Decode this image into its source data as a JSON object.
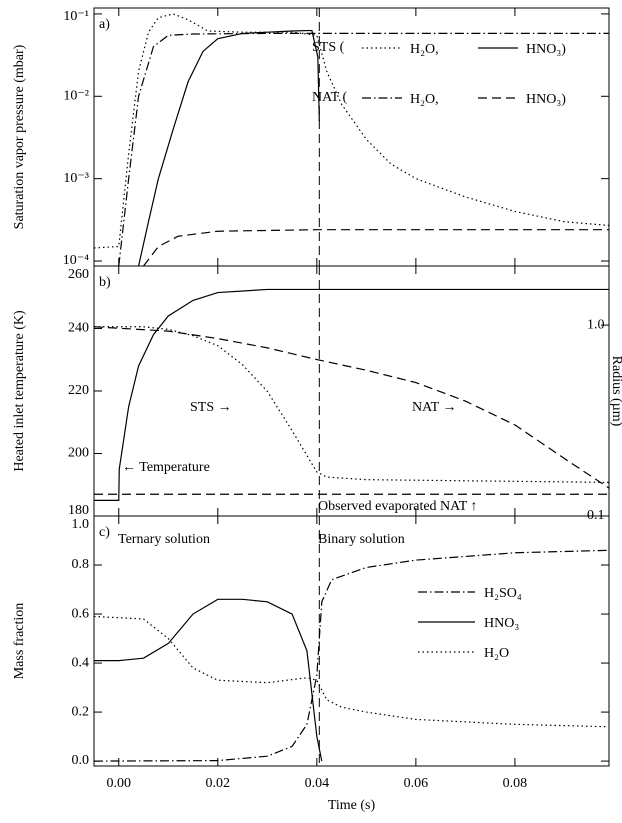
{
  "chart_data": [
    {
      "type": "line",
      "panel_label": "a)",
      "ylabel": "Saturation vapor pressure (mbar)",
      "ylog": true,
      "xlim": [
        -0.005,
        0.099
      ],
      "xticks": [
        0,
        0.02,
        0.04,
        0.06,
        0.08
      ],
      "ylim": [
        8.7e-05,
        0.118
      ],
      "yticks": [
        {
          "value": 0.1,
          "label": "10⁻¹"
        },
        {
          "value": 0.01,
          "label": "10⁻²"
        },
        {
          "value": 0.001,
          "label": "10⁻³"
        },
        {
          "value": 0.0001,
          "label": "10⁻⁴"
        }
      ],
      "vline": 0.0405,
      "legend_rows": [
        "STS (",
        "NAT ("
      ],
      "series": [
        {
          "name": "H₂O,",
          "color": "#000000",
          "dash": "dotted",
          "x": [
            -0.005,
            0,
            0.002,
            0.004,
            0.006,
            0.008,
            0.011,
            0.014,
            0.018,
            0.025,
            0.035,
            0.04,
            0.042,
            0.045,
            0.05,
            0.055,
            0.06,
            0.07,
            0.08,
            0.09,
            0.099
          ],
          "values": [
            0.000144,
            0.00015,
            0.002,
            0.02,
            0.06,
            0.09,
            0.1,
            0.085,
            0.062,
            0.06,
            0.06,
            0.055,
            0.02,
            0.008,
            0.003,
            0.0015,
            0.001,
            0.0006,
            0.0004,
            0.0003,
            0.00027
          ]
        },
        {
          "name": "HNO₃)",
          "color": "#000000",
          "dash": "solid",
          "x": [
            0.004,
            0.006,
            0.008,
            0.011,
            0.014,
            0.017,
            0.02,
            0.025,
            0.03,
            0.035,
            0.039,
            0.0402,
            0.0405
          ],
          "values": [
            8.7e-05,
            0.0003,
            0.001,
            0.004,
            0.015,
            0.035,
            0.05,
            0.058,
            0.06,
            0.062,
            0.063,
            0.03,
            0.005
          ]
        },
        {
          "name": "H₂O,",
          "color": "#000000",
          "dash": "dashdot",
          "x": [
            0,
            0.002,
            0.004,
            0.007,
            0.01,
            0.015,
            0.03,
            0.04,
            0.099
          ],
          "values": [
            8.7e-05,
            0.001,
            0.01,
            0.04,
            0.055,
            0.057,
            0.058,
            0.058,
            0.058
          ]
        },
        {
          "name": "HNO₃)",
          "color": "#000000",
          "dash": "dashed",
          "x": [
            0.005,
            0.008,
            0.012,
            0.02,
            0.04,
            0.099
          ],
          "values": [
            8.7e-05,
            0.00015,
            0.0002,
            0.00023,
            0.00024,
            0.00024
          ]
        }
      ]
    },
    {
      "type": "line",
      "panel_label": "b)",
      "ylabel": "Heated inlet temperature (K)",
      "y2label": "Radius (µm)",
      "xlim": [
        -0.005,
        0.099
      ],
      "xticks": [
        0,
        0.02,
        0.04,
        0.06,
        0.08
      ],
      "ylim": [
        180,
        260
      ],
      "yticks": [
        180,
        200,
        220,
        240,
        260
      ],
      "y2log": true,
      "y2lim": [
        0.1,
        2.04
      ],
      "y2ticks": [
        {
          "value": 1,
          "label": "1.0"
        },
        0.1
      ],
      "vline": 0.0405,
      "annotations": [
        "STS →",
        "NAT →",
        "← Temperature",
        "Observed evaporated NAT ↑"
      ],
      "series": [
        {
          "color": "#000000",
          "dash": "solid",
          "x": [
            -0.005,
            0,
            0.0001,
            0.002,
            0.004,
            0.007,
            0.01,
            0.015,
            0.02,
            0.03,
            0.099
          ],
          "values": [
            185,
            185,
            195,
            215,
            228,
            238,
            244,
            249,
            251.5,
            252.5,
            252.5
          ]
        },
        {
          "color": "#000000",
          "dash": "dotted",
          "axis": "y2",
          "x": [
            -0.005,
            0.005,
            0.01,
            0.015,
            0.02,
            0.025,
            0.03,
            0.035,
            0.04,
            0.042,
            0.05,
            0.099
          ],
          "values": [
            0.98,
            0.98,
            0.95,
            0.88,
            0.78,
            0.62,
            0.45,
            0.28,
            0.17,
            0.16,
            0.155,
            0.15
          ]
        },
        {
          "color": "#000000",
          "dash": "dashed",
          "axis": "y2",
          "x": [
            -0.005,
            0.01,
            0.02,
            0.03,
            0.04,
            0.05,
            0.06,
            0.07,
            0.08,
            0.09,
            0.099
          ],
          "values": [
            0.98,
            0.93,
            0.85,
            0.76,
            0.66,
            0.58,
            0.5,
            0.4,
            0.3,
            0.2,
            0.14
          ]
        },
        {
          "color": "#000000",
          "dash": "dashed",
          "axis": "y2",
          "x": [
            -0.005,
            0.099
          ],
          "values": [
            0.13,
            0.13
          ]
        }
      ]
    },
    {
      "type": "line",
      "panel_label": "c)",
      "ylabel": "Mass fraction",
      "xlabel": "Time (s)",
      "xlim": [
        -0.005,
        0.099
      ],
      "xticks": [
        {
          "value": 0,
          "label": "0.00"
        },
        {
          "value": 0.02,
          "label": "0.02"
        },
        {
          "value": 0.04,
          "label": "0.04"
        },
        {
          "value": 0.06,
          "label": "0.06"
        },
        {
          "value": 0.08,
          "label": "0.08"
        }
      ],
      "ylim": [
        -0.02,
        1.0
      ],
      "yticks": [
        {
          "value": 0,
          "label": "0.0"
        },
        0.2,
        0.4,
        0.6,
        0.8,
        {
          "value": 1,
          "label": "1.0"
        }
      ],
      "vline": 0.0405,
      "annotations": [
        "Ternary solution",
        "Binary solution"
      ],
      "series": [
        {
          "name": "H₂SO₄",
          "color": "#000000",
          "dash": "dashdot",
          "x": [
            -0.005,
            0.02,
            0.03,
            0.035,
            0.038,
            0.04,
            0.041,
            0.043,
            0.05,
            0.06,
            0.08,
            0.099
          ],
          "values": [
            0,
            0.002,
            0.02,
            0.06,
            0.15,
            0.35,
            0.65,
            0.74,
            0.79,
            0.82,
            0.85,
            0.86
          ]
        },
        {
          "name": "HNO₃",
          "color": "#000000",
          "dash": "solid",
          "x": [
            -0.005,
            0,
            0.005,
            0.01,
            0.015,
            0.02,
            0.025,
            0.03,
            0.035,
            0.038,
            0.04,
            0.041
          ],
          "values": [
            0.41,
            0.41,
            0.42,
            0.48,
            0.6,
            0.66,
            0.66,
            0.65,
            0.6,
            0.45,
            0.1,
            0
          ]
        },
        {
          "name": "H₂O",
          "color": "#000000",
          "dash": "dotted",
          "x": [
            -0.005,
            0.005,
            0.01,
            0.015,
            0.02,
            0.03,
            0.038,
            0.04,
            0.042,
            0.045,
            0.05,
            0.06,
            0.08,
            0.099
          ],
          "values": [
            0.59,
            0.58,
            0.5,
            0.38,
            0.33,
            0.32,
            0.34,
            0.33,
            0.25,
            0.22,
            0.2,
            0.17,
            0.15,
            0.14
          ]
        }
      ]
    }
  ]
}
